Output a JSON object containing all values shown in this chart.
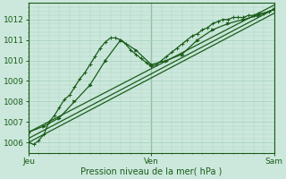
{
  "xlabel": "Pression niveau de la mer( hPa )",
  "bg_color": "#cce8dc",
  "grid_color": "#a8d4c0",
  "line_color": "#1a5c1a",
  "ylim": [
    1005.5,
    1012.8
  ],
  "xlim": [
    0,
    48
  ],
  "xtick_positions": [
    0,
    24,
    48
  ],
  "xtick_labels": [
    "Jeu",
    "Ven",
    "Sam"
  ],
  "ytick_positions": [
    1006,
    1007,
    1008,
    1009,
    1010,
    1011,
    1012
  ],
  "series1_x": [
    0,
    1,
    2,
    3,
    4,
    5,
    6,
    7,
    8,
    9,
    10,
    11,
    12,
    13,
    14,
    15,
    16,
    17,
    18,
    19,
    20,
    21,
    22,
    23,
    24,
    25,
    26,
    27,
    28,
    29,
    30,
    31,
    32,
    33,
    34,
    35,
    36,
    37,
    38,
    39,
    40,
    41,
    42,
    43,
    44,
    45,
    46,
    47,
    48
  ],
  "series1_y": [
    1006.0,
    1005.9,
    1006.1,
    1006.4,
    1007.0,
    1007.3,
    1007.7,
    1008.1,
    1008.3,
    1008.7,
    1009.1,
    1009.4,
    1009.8,
    1010.2,
    1010.6,
    1010.9,
    1011.1,
    1011.1,
    1011.0,
    1010.8,
    1010.5,
    1010.3,
    1010.1,
    1009.9,
    1009.7,
    1009.8,
    1010.0,
    1010.2,
    1010.4,
    1010.6,
    1010.8,
    1011.0,
    1011.2,
    1011.3,
    1011.5,
    1011.6,
    1011.8,
    1011.9,
    1012.0,
    1012.0,
    1012.1,
    1012.1,
    1012.1,
    1012.2,
    1012.2,
    1012.3,
    1012.3,
    1012.4,
    1012.5
  ],
  "series2_x": [
    0,
    3,
    6,
    9,
    12,
    15,
    18,
    21,
    24,
    27,
    30,
    33,
    36,
    39,
    42,
    45,
    48
  ],
  "series2_y": [
    1006.5,
    1006.8,
    1007.2,
    1008.0,
    1008.8,
    1010.0,
    1011.0,
    1010.5,
    1009.8,
    1010.0,
    1010.3,
    1011.0,
    1011.5,
    1011.8,
    1012.0,
    1012.2,
    1012.5
  ],
  "line1_x": [
    0,
    48
  ],
  "line1_y": [
    1006.0,
    1012.3
  ],
  "line2_x": [
    0,
    48
  ],
  "line2_y": [
    1006.2,
    1012.5
  ],
  "line3_x": [
    0,
    48
  ],
  "line3_y": [
    1006.5,
    1012.7
  ]
}
